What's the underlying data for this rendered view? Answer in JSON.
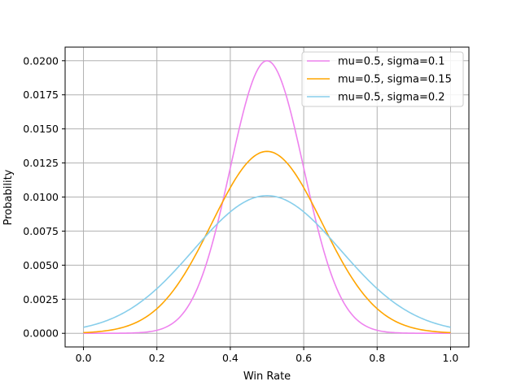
{
  "chart_data": {
    "type": "line",
    "title": "",
    "xlabel": "Win Rate",
    "ylabel": "Probability",
    "xlim": [
      -0.05,
      1.05
    ],
    "ylim": [
      -0.001,
      0.021
    ],
    "x_ticks": [
      0.0,
      0.2,
      0.4,
      0.6,
      0.8,
      1.0
    ],
    "x_tick_labels": [
      "0.0",
      "0.2",
      "0.4",
      "0.6",
      "0.8",
      "1.0"
    ],
    "y_ticks": [
      0.0,
      0.0025,
      0.005,
      0.0075,
      0.01,
      0.0125,
      0.015,
      0.0175,
      0.02
    ],
    "y_tick_labels": [
      "0.0000",
      "0.0025",
      "0.0050",
      "0.0075",
      "0.0100",
      "0.0125",
      "0.0150",
      "0.0175",
      "0.0200"
    ],
    "grid": true,
    "legend_position": "upper-right",
    "x_range": [
      0.0,
      1.0
    ],
    "series": [
      {
        "name": "mu=0.5, sigma=0.1",
        "mu": 0.5,
        "sigma": 0.1,
        "peak": 0.02,
        "color": "#ee82ee"
      },
      {
        "name": "mu=0.5, sigma=0.15",
        "mu": 0.5,
        "sigma": 0.15,
        "peak": 0.01335,
        "color": "#ffa500"
      },
      {
        "name": "mu=0.5, sigma=0.2",
        "mu": 0.5,
        "sigma": 0.2,
        "peak": 0.0101,
        "color": "#87ceeb"
      }
    ]
  }
}
